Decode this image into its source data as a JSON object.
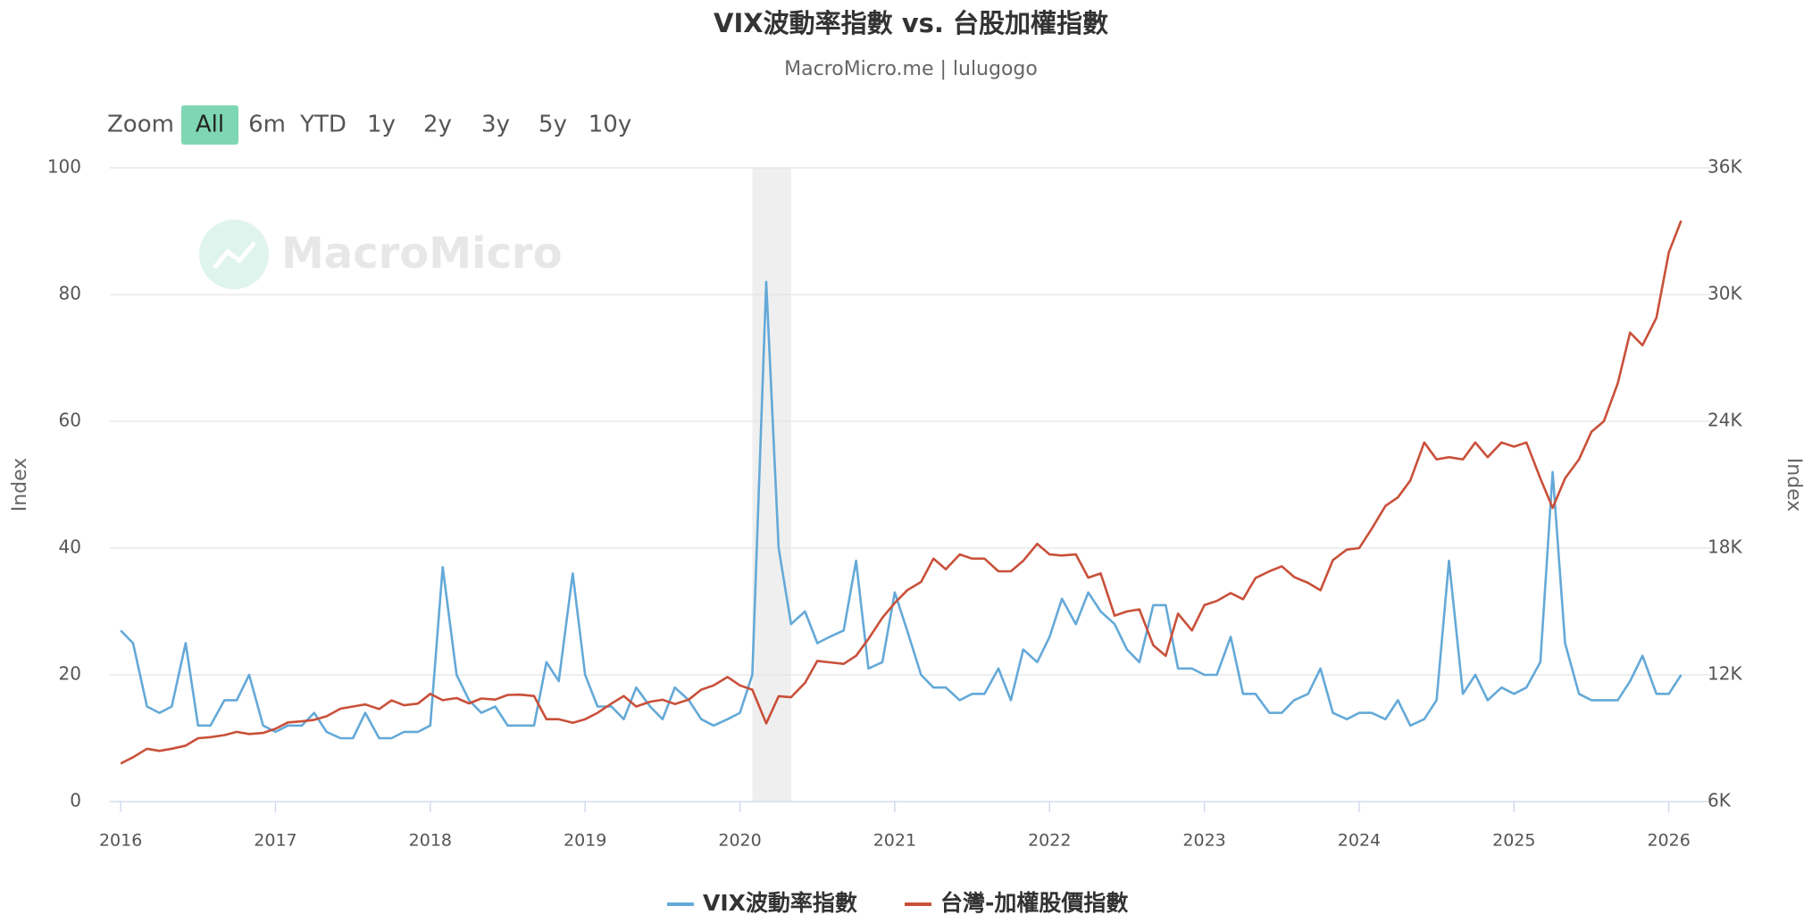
{
  "chart_data": {
    "type": "line",
    "title": "VIX波動率指數 vs. 台股加權指數",
    "subtitle": "MacroMicro.me | lulugogo",
    "watermark": "MacroMicro",
    "range_selector": {
      "label": "Zoom",
      "buttons": [
        "All",
        "6m",
        "YTD",
        "1y",
        "2y",
        "3y",
        "5y",
        "10y"
      ],
      "selected": 0
    },
    "y_label": "Index",
    "y2_label": "Index",
    "xlim": [
      2015.93,
      2026.25
    ],
    "xticks": [
      2016,
      2017,
      2018,
      2019,
      2020,
      2021,
      2022,
      2023,
      2024,
      2025,
      2026
    ],
    "ylim": [
      0,
      100
    ],
    "yticks": [
      0,
      20,
      40,
      60,
      80,
      100
    ],
    "y2lim": [
      6000,
      36000
    ],
    "y2ticks": [
      {
        "value": 6000,
        "label": "6K"
      },
      {
        "value": 12000,
        "label": "12K"
      },
      {
        "value": 18000,
        "label": "18K"
      },
      {
        "value": 24000,
        "label": "24K"
      },
      {
        "value": 30000,
        "label": "30K"
      },
      {
        "value": 36000,
        "label": "36K"
      }
    ],
    "grid": true,
    "legend": "bottom",
    "shaded_band": [
      2020.08,
      2020.33
    ],
    "x": [
      2016.0,
      2016.08,
      2016.17,
      2016.25,
      2016.33,
      2016.42,
      2016.5,
      2016.58,
      2016.67,
      2016.75,
      2016.83,
      2016.92,
      2017.0,
      2017.08,
      2017.17,
      2017.25,
      2017.33,
      2017.42,
      2017.5,
      2017.58,
      2017.67,
      2017.75,
      2017.83,
      2017.92,
      2018.0,
      2018.08,
      2018.17,
      2018.25,
      2018.33,
      2018.42,
      2018.5,
      2018.58,
      2018.67,
      2018.75,
      2018.83,
      2018.92,
      2019.0,
      2019.08,
      2019.17,
      2019.25,
      2019.33,
      2019.42,
      2019.5,
      2019.58,
      2019.67,
      2019.75,
      2019.83,
      2019.92,
      2020.0,
      2020.08,
      2020.17,
      2020.25,
      2020.33,
      2020.42,
      2020.5,
      2020.58,
      2020.67,
      2020.75,
      2020.83,
      2020.92,
      2021.0,
      2021.08,
      2021.17,
      2021.25,
      2021.33,
      2021.42,
      2021.5,
      2021.58,
      2021.67,
      2021.75,
      2021.83,
      2021.92,
      2022.0,
      2022.08,
      2022.17,
      2022.25,
      2022.33,
      2022.42,
      2022.5,
      2022.58,
      2022.67,
      2022.75,
      2022.83,
      2022.92,
      2023.0,
      2023.08,
      2023.17,
      2023.25,
      2023.33,
      2023.42,
      2023.5,
      2023.58,
      2023.67,
      2023.75,
      2023.83,
      2023.92,
      2024.0,
      2024.08,
      2024.17,
      2024.25,
      2024.33,
      2024.42,
      2024.5,
      2024.58,
      2024.67,
      2024.75,
      2024.83,
      2024.92,
      2025.0,
      2025.08,
      2025.17,
      2025.25,
      2025.33,
      2025.42,
      2025.5,
      2025.58,
      2025.67,
      2025.75,
      2025.83,
      2025.92,
      2026.0,
      2026.08
    ],
    "series": [
      {
        "name": "VIX波動率指數",
        "color": "#64a9d8",
        "axis": "y",
        "values": [
          27,
          25,
          15,
          14,
          15,
          25,
          12,
          12,
          16,
          16,
          20,
          12,
          11,
          12,
          12,
          14,
          11,
          10,
          10,
          14,
          10,
          10,
          11,
          11,
          12,
          37,
          20,
          16,
          14,
          15,
          12,
          12,
          12,
          22,
          19,
          36,
          20,
          15,
          15,
          13,
          18,
          15,
          13,
          18,
          16,
          13,
          12,
          13,
          14,
          20,
          82,
          40,
          28,
          30,
          25,
          26,
          27,
          38,
          21,
          22,
          33,
          27,
          20,
          18,
          18,
          16,
          17,
          17,
          21,
          16,
          24,
          22,
          26,
          32,
          28,
          33,
          30,
          28,
          24,
          22,
          31,
          31,
          21,
          21,
          20,
          20,
          26,
          17,
          17,
          14,
          14,
          16,
          17,
          21,
          14,
          13,
          14,
          14,
          13,
          16,
          12,
          13,
          16,
          38,
          17,
          20,
          16,
          18,
          17,
          18,
          22,
          52,
          25,
          17,
          16,
          16,
          16,
          19,
          23,
          17,
          17,
          20
        ]
      },
      {
        "name": "台灣-加權股價指數",
        "color": "#c9503a",
        "axis": "y2",
        "values": [
          7800,
          8100,
          8500,
          8400,
          8500,
          8650,
          9000,
          9050,
          9150,
          9300,
          9200,
          9250,
          9450,
          9750,
          9800,
          9870,
          10040,
          10400,
          10500,
          10600,
          10380,
          10790,
          10560,
          10640,
          11100,
          10800,
          10900,
          10650,
          10880,
          10830,
          11050,
          11060,
          11000,
          9900,
          9900,
          9730,
          9900,
          10200,
          10640,
          11000,
          10500,
          10730,
          10820,
          10620,
          10830,
          11300,
          11500,
          11900,
          11500,
          11300,
          9700,
          10990,
          10940,
          11620,
          12660,
          12590,
          12520,
          12900,
          13700,
          14700,
          15400,
          16000,
          16400,
          17500,
          17000,
          17700,
          17500,
          17500,
          16900,
          16900,
          17400,
          18200,
          17700,
          17650,
          17700,
          16600,
          16800,
          14800,
          15000,
          15100,
          13400,
          12900,
          14900,
          14100,
          15300,
          15500,
          15870,
          15580,
          16580,
          16900,
          17140,
          16630,
          16350,
          16000,
          17430,
          17930,
          18000,
          18900,
          20000,
          20400,
          21200,
          23000,
          22200,
          22300,
          22200,
          23000,
          22300,
          23000,
          22800,
          23000,
          21300,
          19900,
          21300,
          22200,
          23500,
          24000,
          25800,
          28200,
          27600,
          28900,
          32000,
          33500
        ]
      }
    ]
  }
}
